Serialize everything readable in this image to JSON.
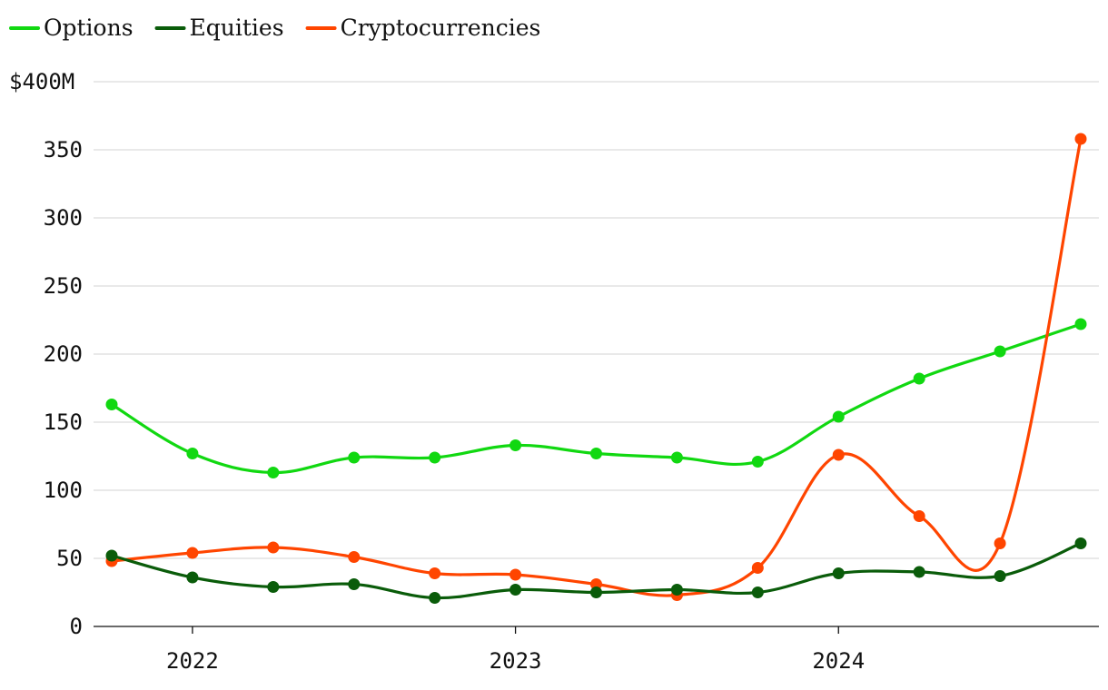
{
  "chart_data": {
    "type": "line",
    "title": "",
    "xlabel": "",
    "ylabel": "",
    "ylim": [
      0,
      400
    ],
    "y_ticks": [
      0,
      50,
      100,
      150,
      200,
      250,
      300,
      350,
      400
    ],
    "y_tick_labels": [
      "0",
      "50",
      "100",
      "150",
      "200",
      "250",
      "300",
      "350",
      "$400M"
    ],
    "x_ticks": [
      2022,
      2023,
      2024
    ],
    "x_tick_labels": [
      "2022",
      "2023",
      "2024"
    ],
    "x": [
      2021.75,
      2022.0,
      2022.25,
      2022.5,
      2022.75,
      2023.0,
      2023.25,
      2023.5,
      2023.75,
      2024.0,
      2024.25,
      2024.5,
      2024.75
    ],
    "grid": true,
    "legend_position": "top-left",
    "series": [
      {
        "name": "Options",
        "color": "#11d811",
        "values": [
          163,
          127,
          113,
          124,
          124,
          133,
          127,
          124,
          121,
          154,
          182,
          202,
          222
        ]
      },
      {
        "name": "Equities",
        "color": "#0a5c0a",
        "values": [
          52,
          36,
          29,
          31,
          21,
          27,
          25,
          27,
          25,
          39,
          40,
          37,
          61
        ]
      },
      {
        "name": "Cryptocurrencies",
        "color": "#ff4500",
        "values": [
          48,
          54,
          58,
          51,
          39,
          38,
          31,
          23,
          43,
          126,
          81,
          61,
          358
        ]
      }
    ]
  }
}
